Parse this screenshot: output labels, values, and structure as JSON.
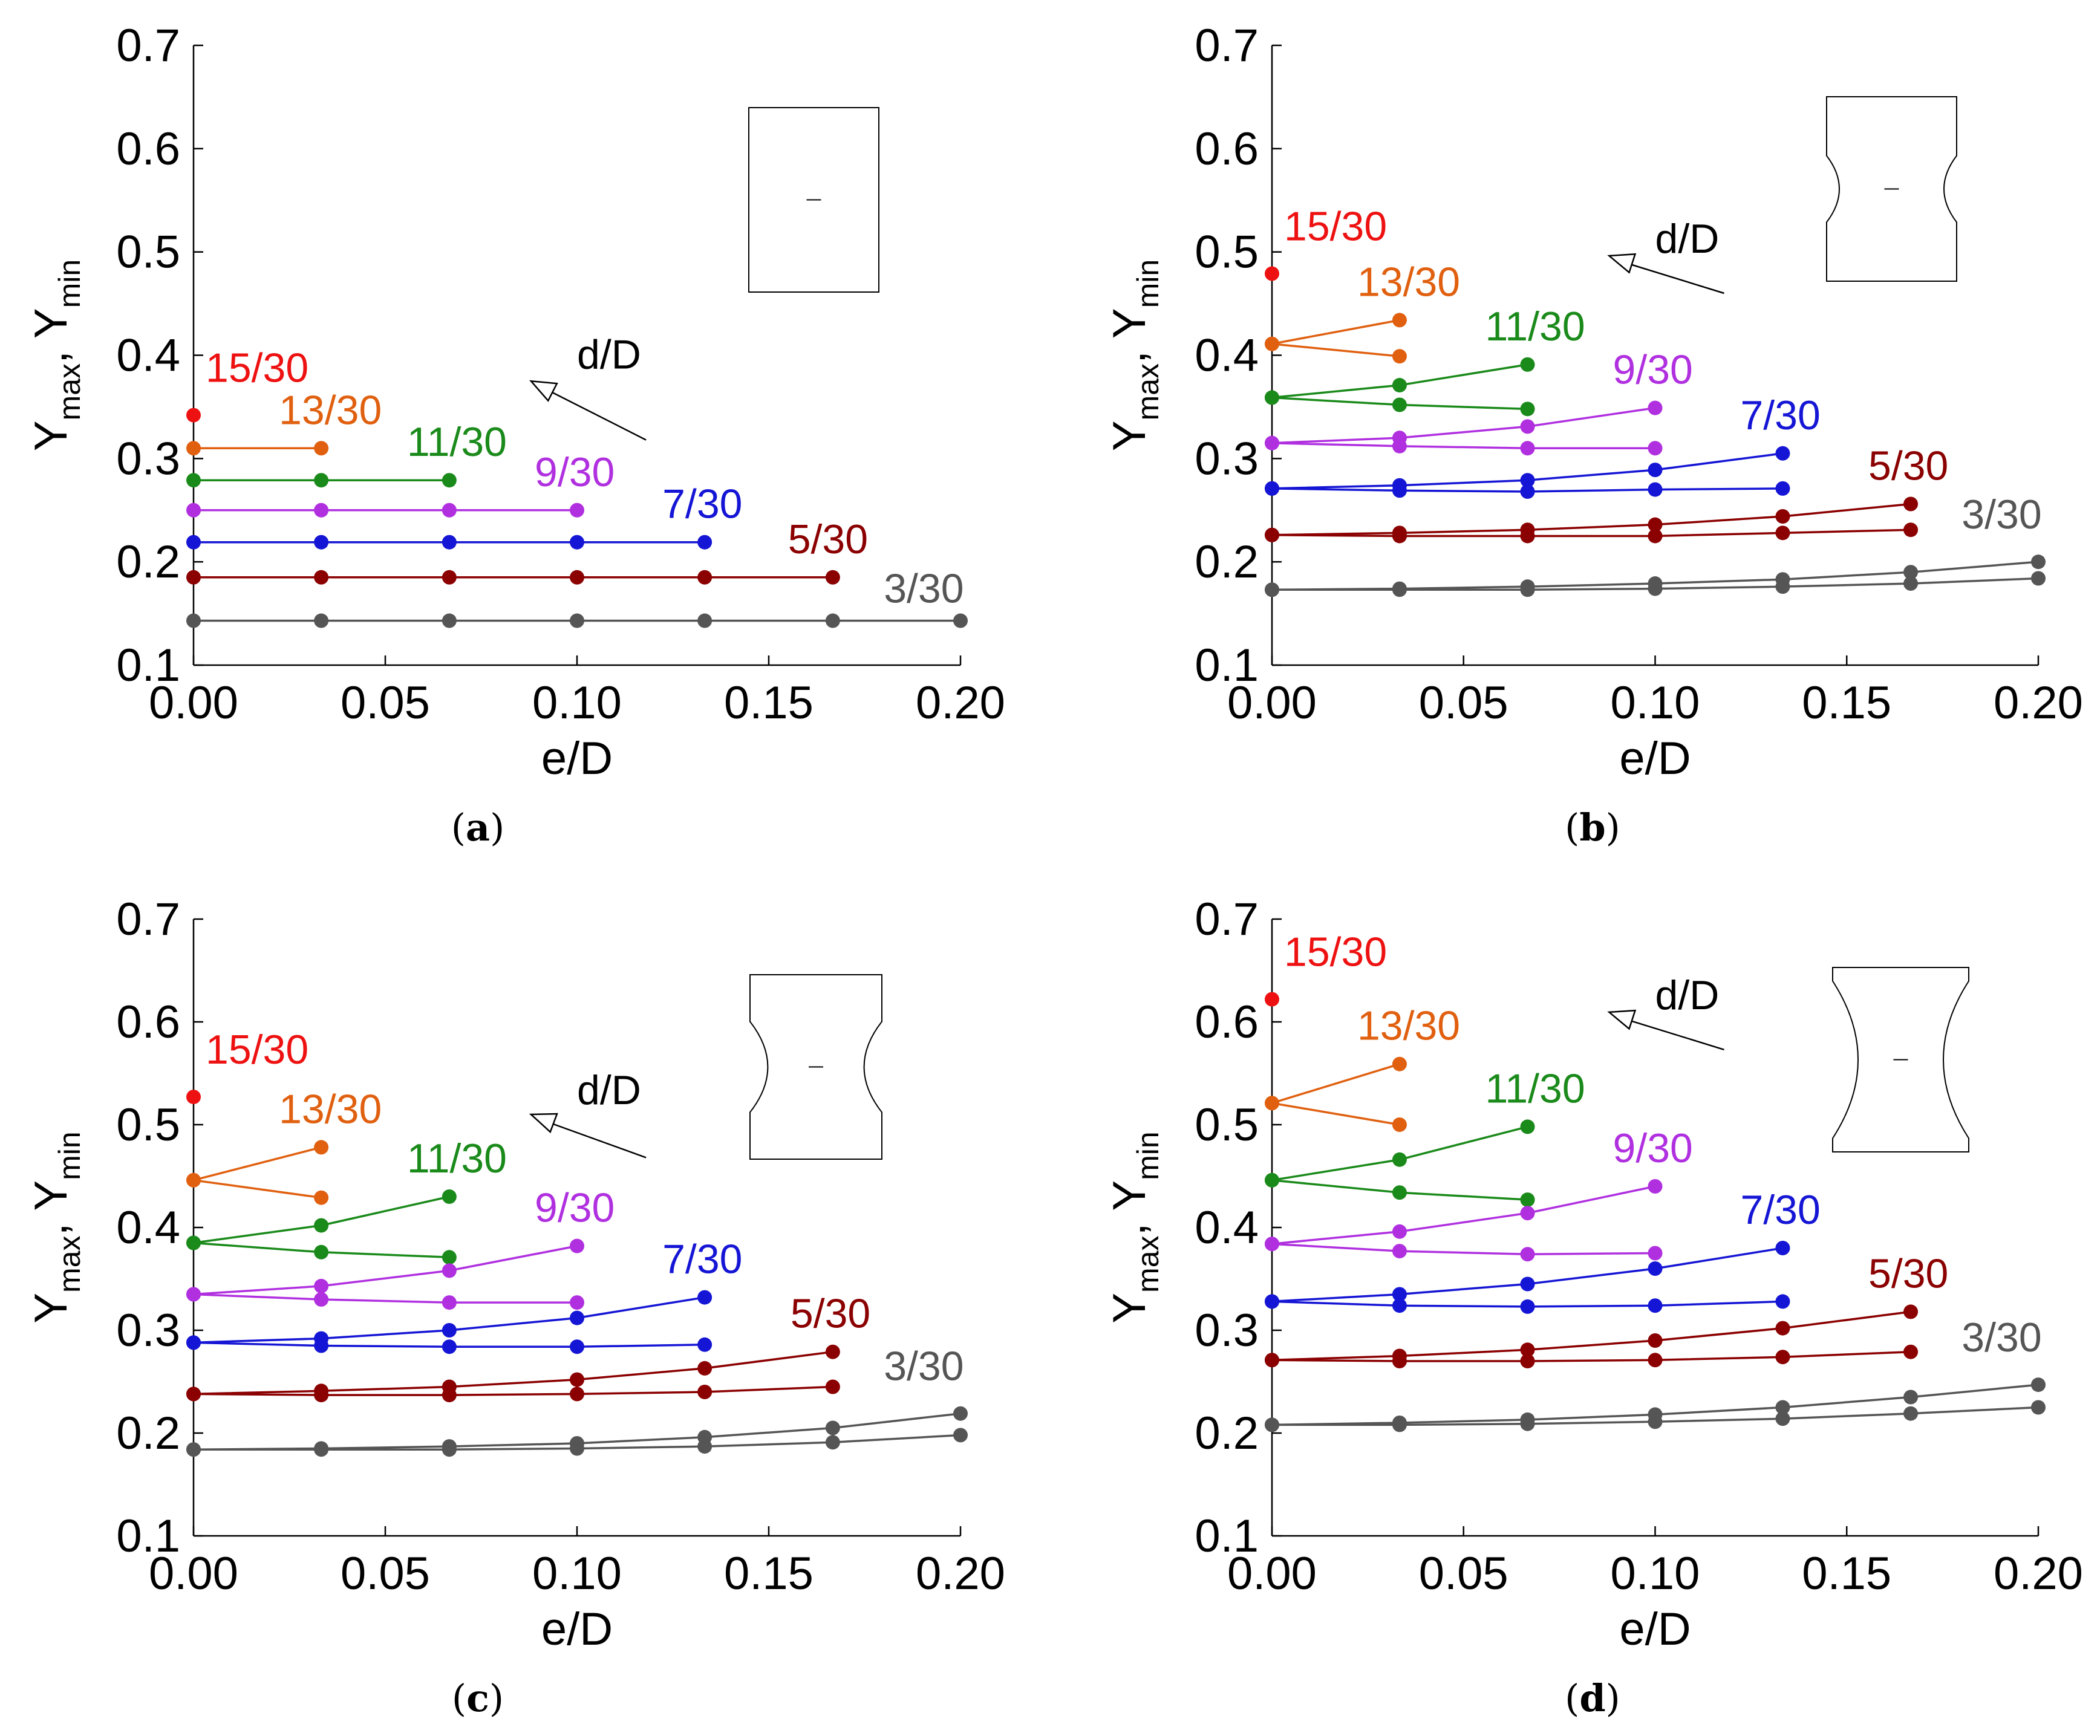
{
  "figure": {
    "captions": [
      "(a)",
      "(b)",
      "(c)",
      "(d)"
    ]
  },
  "colors": {
    "15/30": "#ee1111",
    "13/30": "#e06010",
    "11/30": "#1a8a1a",
    "9/30": "#b030e0",
    "7/30": "#1515d5",
    "5/30": "#8b0000",
    "3/30": "#555555"
  },
  "chart_data": [
    {
      "type": "line",
      "panel": "(a)",
      "xlabel": "e/D",
      "ylabel": "Y_max, Y_min",
      "ylabel_parts": [
        "Y",
        "max",
        ", Y",
        "min"
      ],
      "xlim": [
        0,
        0.2
      ],
      "ylim": [
        0.1,
        0.7
      ],
      "xticks": [
        "0.00",
        "0.05",
        "0.10",
        "0.15",
        "0.20"
      ],
      "yticks": [
        "0.1",
        "0.2",
        "0.3",
        "0.4",
        "0.5",
        "0.6",
        "0.7"
      ],
      "annotation": "d/D",
      "inset_shape": "plain",
      "series": [
        {
          "name": "15/30",
          "max": [
            [
              0,
              0.342
            ]
          ],
          "min": []
        },
        {
          "name": "13/30",
          "max": [
            [
              0,
              0.31
            ],
            [
              0.0333,
              0.31
            ]
          ],
          "min": []
        },
        {
          "name": "11/30",
          "max": [
            [
              0,
              0.279
            ],
            [
              0.0333,
              0.279
            ],
            [
              0.0667,
              0.279
            ]
          ],
          "min": []
        },
        {
          "name": "9/30",
          "max": [
            [
              0,
              0.25
            ],
            [
              0.0333,
              0.25
            ],
            [
              0.0667,
              0.25
            ],
            [
              0.1,
              0.25
            ]
          ],
          "min": []
        },
        {
          "name": "7/30",
          "max": [
            [
              0,
              0.219
            ],
            [
              0.0333,
              0.219
            ],
            [
              0.0667,
              0.219
            ],
            [
              0.1,
              0.219
            ],
            [
              0.1333,
              0.219
            ]
          ],
          "min": []
        },
        {
          "name": "5/30",
          "max": [
            [
              0,
              0.185
            ],
            [
              0.0333,
              0.185
            ],
            [
              0.0667,
              0.185
            ],
            [
              0.1,
              0.185
            ],
            [
              0.1333,
              0.185
            ],
            [
              0.1667,
              0.185
            ]
          ],
          "min": []
        },
        {
          "name": "3/30",
          "max": [
            [
              0,
              0.143
            ],
            [
              0.0333,
              0.143
            ],
            [
              0.0667,
              0.143
            ],
            [
              0.1,
              0.143
            ],
            [
              0.1333,
              0.143
            ],
            [
              0.1667,
              0.143
            ],
            [
              0.2,
              0.143
            ]
          ],
          "min": []
        }
      ]
    },
    {
      "type": "line",
      "panel": "(b)",
      "xlabel": "e/D",
      "ylabel": "Y_max, Y_min",
      "ylabel_parts": [
        "Y",
        "max",
        ", Y",
        "min"
      ],
      "xlim": [
        0,
        0.2
      ],
      "ylim": [
        0.1,
        0.7
      ],
      "xticks": [
        "0.00",
        "0.05",
        "0.10",
        "0.15",
        "0.20"
      ],
      "yticks": [
        "0.1",
        "0.2",
        "0.3",
        "0.4",
        "0.5",
        "0.6",
        "0.7"
      ],
      "annotation": "d/D",
      "inset_shape": "small-notch",
      "series": [
        {
          "name": "15/30",
          "max": [
            [
              0,
              0.479
            ]
          ],
          "min": []
        },
        {
          "name": "13/30",
          "max": [
            [
              0,
              0.411
            ],
            [
              0.0333,
              0.434
            ]
          ],
          "min": [
            [
              0,
              0.411
            ],
            [
              0.0333,
              0.399
            ]
          ]
        },
        {
          "name": "11/30",
          "max": [
            [
              0,
              0.359
            ],
            [
              0.0333,
              0.371
            ],
            [
              0.0667,
              0.391
            ]
          ],
          "min": [
            [
              0,
              0.359
            ],
            [
              0.0333,
              0.352
            ],
            [
              0.0667,
              0.348
            ]
          ]
        },
        {
          "name": "9/30",
          "max": [
            [
              0,
              0.315
            ],
            [
              0.0333,
              0.32
            ],
            [
              0.0667,
              0.331
            ],
            [
              0.1,
              0.349
            ]
          ],
          "min": [
            [
              0,
              0.315
            ],
            [
              0.0333,
              0.312
            ],
            [
              0.0667,
              0.31
            ],
            [
              0.1,
              0.31
            ]
          ]
        },
        {
          "name": "7/30",
          "max": [
            [
              0,
              0.271
            ],
            [
              0.0333,
              0.274
            ],
            [
              0.0667,
              0.279
            ],
            [
              0.1,
              0.289
            ],
            [
              0.1333,
              0.305
            ]
          ],
          "min": [
            [
              0,
              0.271
            ],
            [
              0.0333,
              0.269
            ],
            [
              0.0667,
              0.268
            ],
            [
              0.1,
              0.27
            ],
            [
              0.1333,
              0.271
            ]
          ]
        },
        {
          "name": "5/30",
          "max": [
            [
              0,
              0.226
            ],
            [
              0.0333,
              0.228
            ],
            [
              0.0667,
              0.231
            ],
            [
              0.1,
              0.236
            ],
            [
              0.1333,
              0.244
            ],
            [
              0.1667,
              0.256
            ]
          ],
          "min": [
            [
              0,
              0.226
            ],
            [
              0.0333,
              0.225
            ],
            [
              0.0667,
              0.225
            ],
            [
              0.1,
              0.225
            ],
            [
              0.1333,
              0.228
            ],
            [
              0.1667,
              0.231
            ]
          ]
        },
        {
          "name": "3/30",
          "max": [
            [
              0,
              0.173
            ],
            [
              0.0333,
              0.174
            ],
            [
              0.0667,
              0.176
            ],
            [
              0.1,
              0.179
            ],
            [
              0.1333,
              0.183
            ],
            [
              0.1667,
              0.19
            ],
            [
              0.2,
              0.2
            ]
          ],
          "min": [
            [
              0,
              0.173
            ],
            [
              0.0333,
              0.173
            ],
            [
              0.0667,
              0.173
            ],
            [
              0.1,
              0.174
            ],
            [
              0.1333,
              0.176
            ],
            [
              0.1667,
              0.179
            ],
            [
              0.2,
              0.184
            ]
          ]
        }
      ]
    },
    {
      "type": "line",
      "panel": "(c)",
      "xlabel": "e/D",
      "ylabel": "Y_max, Y_min",
      "ylabel_parts": [
        "Y",
        "max",
        ", Y",
        "min"
      ],
      "xlim": [
        0,
        0.2
      ],
      "ylim": [
        0.1,
        0.7
      ],
      "xticks": [
        "0.00",
        "0.05",
        "0.10",
        "0.15",
        "0.20"
      ],
      "yticks": [
        "0.1",
        "0.2",
        "0.3",
        "0.4",
        "0.5",
        "0.6",
        "0.7"
      ],
      "annotation": "d/D",
      "inset_shape": "medium-notch",
      "series": [
        {
          "name": "15/30",
          "max": [
            [
              0,
              0.527
            ]
          ],
          "min": []
        },
        {
          "name": "13/30",
          "max": [
            [
              0,
              0.446
            ],
            [
              0.0333,
              0.478
            ]
          ],
          "min": [
            [
              0,
              0.446
            ],
            [
              0.0333,
              0.429
            ]
          ]
        },
        {
          "name": "11/30",
          "max": [
            [
              0,
              0.385
            ],
            [
              0.0333,
              0.402
            ],
            [
              0.0667,
              0.43
            ]
          ],
          "min": [
            [
              0,
              0.385
            ],
            [
              0.0333,
              0.376
            ],
            [
              0.0667,
              0.371
            ]
          ]
        },
        {
          "name": "9/30",
          "max": [
            [
              0,
              0.335
            ],
            [
              0.0333,
              0.343
            ],
            [
              0.0667,
              0.358
            ],
            [
              0.1,
              0.382
            ]
          ],
          "min": [
            [
              0,
              0.335
            ],
            [
              0.0333,
              0.33
            ],
            [
              0.0667,
              0.327
            ],
            [
              0.1,
              0.327
            ]
          ]
        },
        {
          "name": "7/30",
          "max": [
            [
              0,
              0.288
            ],
            [
              0.0333,
              0.292
            ],
            [
              0.0667,
              0.3
            ],
            [
              0.1,
              0.312
            ],
            [
              0.1333,
              0.332
            ]
          ],
          "min": [
            [
              0,
              0.288
            ],
            [
              0.0333,
              0.285
            ],
            [
              0.0667,
              0.284
            ],
            [
              0.1,
              0.284
            ],
            [
              0.1333,
              0.286
            ]
          ]
        },
        {
          "name": "5/30",
          "max": [
            [
              0,
              0.238
            ],
            [
              0.0333,
              0.241
            ],
            [
              0.0667,
              0.245
            ],
            [
              0.1,
              0.252
            ],
            [
              0.1333,
              0.263
            ],
            [
              0.1667,
              0.279
            ]
          ],
          "min": [
            [
              0,
              0.238
            ],
            [
              0.0333,
              0.237
            ],
            [
              0.0667,
              0.237
            ],
            [
              0.1,
              0.238
            ],
            [
              0.1333,
              0.24
            ],
            [
              0.1667,
              0.245
            ]
          ]
        },
        {
          "name": "3/30",
          "max": [
            [
              0,
              0.184
            ],
            [
              0.0333,
              0.185
            ],
            [
              0.0667,
              0.187
            ],
            [
              0.1,
              0.19
            ],
            [
              0.1333,
              0.196
            ],
            [
              0.1667,
              0.205
            ],
            [
              0.2,
              0.219
            ]
          ],
          "min": [
            [
              0,
              0.184
            ],
            [
              0.0333,
              0.184
            ],
            [
              0.0667,
              0.184
            ],
            [
              0.1,
              0.185
            ],
            [
              0.1333,
              0.187
            ],
            [
              0.1667,
              0.191
            ],
            [
              0.2,
              0.198
            ]
          ]
        }
      ]
    },
    {
      "type": "line",
      "panel": "(d)",
      "xlabel": "e/D",
      "ylabel": "Y_max, Y_min",
      "ylabel_parts": [
        "Y",
        "max",
        ", Y",
        "min"
      ],
      "xlim": [
        0,
        0.2
      ],
      "ylim": [
        0.1,
        0.7
      ],
      "xticks": [
        "0.00",
        "0.05",
        "0.10",
        "0.15",
        "0.20"
      ],
      "yticks": [
        "0.1",
        "0.2",
        "0.3",
        "0.4",
        "0.5",
        "0.6",
        "0.7"
      ],
      "annotation": "d/D",
      "inset_shape": "large-notch",
      "series": [
        {
          "name": "15/30",
          "max": [
            [
              0,
              0.622
            ]
          ],
          "min": []
        },
        {
          "name": "13/30",
          "max": [
            [
              0,
              0.521
            ],
            [
              0.0333,
              0.559
            ]
          ],
          "min": [
            [
              0,
              0.521
            ],
            [
              0.0333,
              0.5
            ]
          ]
        },
        {
          "name": "11/30",
          "max": [
            [
              0,
              0.446
            ],
            [
              0.0333,
              0.466
            ],
            [
              0.0667,
              0.498
            ]
          ],
          "min": [
            [
              0,
              0.446
            ],
            [
              0.0333,
              0.434
            ],
            [
              0.0667,
              0.427
            ]
          ]
        },
        {
          "name": "9/30",
          "max": [
            [
              0,
              0.384
            ],
            [
              0.0333,
              0.396
            ],
            [
              0.0667,
              0.414
            ],
            [
              0.1,
              0.44
            ]
          ],
          "min": [
            [
              0,
              0.384
            ],
            [
              0.0333,
              0.377
            ],
            [
              0.0667,
              0.374
            ],
            [
              0.1,
              0.375
            ]
          ]
        },
        {
          "name": "7/30",
          "max": [
            [
              0,
              0.328
            ],
            [
              0.0333,
              0.335
            ],
            [
              0.0667,
              0.345
            ],
            [
              0.1,
              0.36
            ],
            [
              0.1333,
              0.38
            ]
          ],
          "min": [
            [
              0,
              0.328
            ],
            [
              0.0333,
              0.324
            ],
            [
              0.0667,
              0.323
            ],
            [
              0.1,
              0.324
            ],
            [
              0.1333,
              0.328
            ]
          ]
        },
        {
          "name": "5/30",
          "max": [
            [
              0,
              0.271
            ],
            [
              0.0333,
              0.275
            ],
            [
              0.0667,
              0.281
            ],
            [
              0.1,
              0.29
            ],
            [
              0.1333,
              0.302
            ],
            [
              0.1667,
              0.318
            ]
          ],
          "min": [
            [
              0,
              0.271
            ],
            [
              0.0333,
              0.27
            ],
            [
              0.0667,
              0.27
            ],
            [
              0.1,
              0.271
            ],
            [
              0.1333,
              0.274
            ],
            [
              0.1667,
              0.279
            ]
          ]
        },
        {
          "name": "3/30",
          "max": [
            [
              0,
              0.208
            ],
            [
              0.0333,
              0.21
            ],
            [
              0.0667,
              0.213
            ],
            [
              0.1,
              0.218
            ],
            [
              0.1333,
              0.225
            ],
            [
              0.1667,
              0.235
            ],
            [
              0.2,
              0.247
            ]
          ],
          "min": [
            [
              0,
              0.208
            ],
            [
              0.0333,
              0.208
            ],
            [
              0.0667,
              0.209
            ],
            [
              0.1,
              0.211
            ],
            [
              0.1333,
              0.214
            ],
            [
              0.1667,
              0.219
            ],
            [
              0.2,
              0.225
            ]
          ]
        }
      ]
    }
  ]
}
